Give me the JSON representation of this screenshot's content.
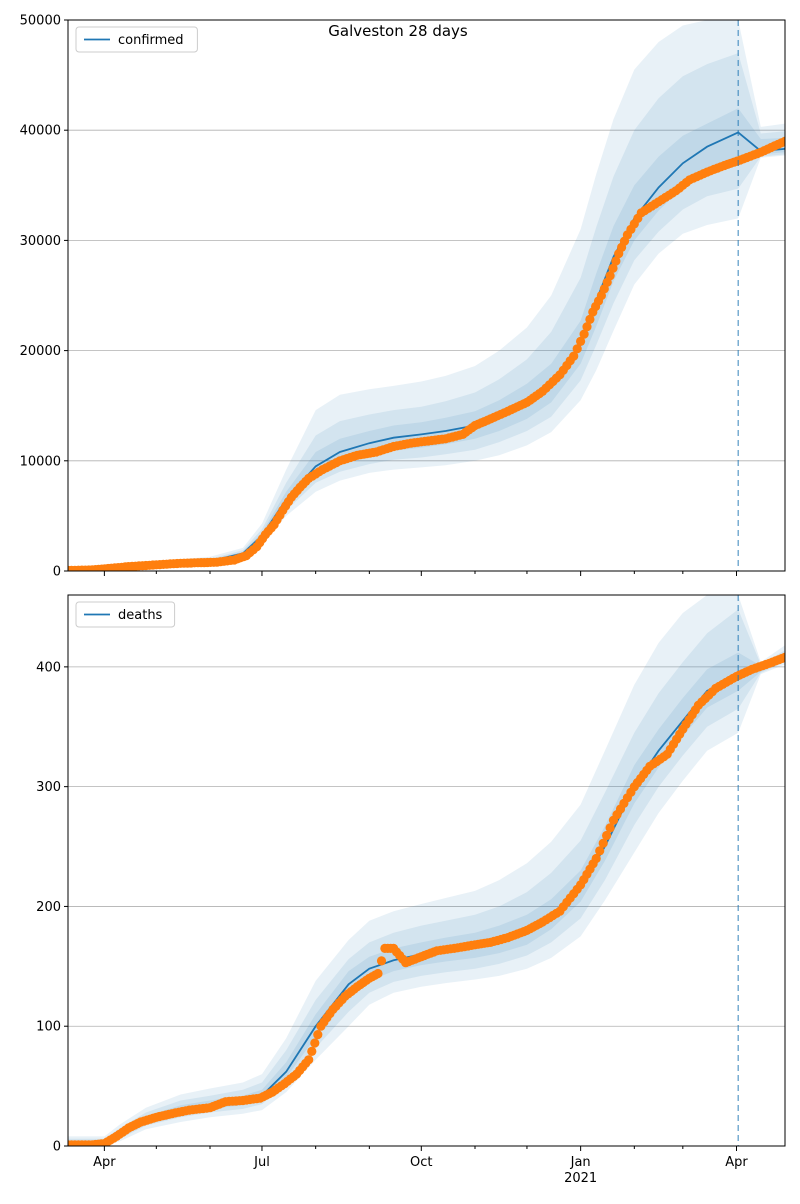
{
  "figure": {
    "title": "Galveston 28 days"
  },
  "colors": {
    "model": "#1f77b4",
    "observed": "#ff7f0e",
    "grid": "#b0b0b0",
    "band": "#1f77b4"
  },
  "chart_data": [
    {
      "type": "line",
      "panel": "top",
      "legend": [
        "confirmed"
      ],
      "legend_position": "top-left",
      "grid": "horizontal",
      "ylim": [
        0,
        50000
      ],
      "yticks": [
        "0",
        "10000",
        "20000",
        "30000",
        "40000",
        "50000"
      ],
      "yticks_values": [
        0,
        10000,
        20000,
        30000,
        40000,
        50000
      ],
      "xlim": [
        "2020-03-11",
        "2021-04-29"
      ],
      "forecast_date": "2021-04-02",
      "series": [
        {
          "name": "confirmed",
          "kind": "model",
          "x": [
            "2020-03-11",
            "2020-04-01",
            "2020-05-01",
            "2020-06-01",
            "2020-06-20",
            "2020-07-01",
            "2020-07-15",
            "2020-08-01",
            "2020-08-15",
            "2020-09-01",
            "2020-09-15",
            "2020-10-01",
            "2020-10-15",
            "2020-11-01",
            "2020-11-15",
            "2020-12-01",
            "2020-12-15",
            "2021-01-01",
            "2021-01-10",
            "2021-01-20",
            "2021-02-01",
            "2021-02-15",
            "2021-03-01",
            "2021-03-15",
            "2021-04-02",
            "2021-04-15",
            "2021-04-29"
          ],
          "y": [
            0,
            200,
            600,
            900,
            1600,
            3200,
            6500,
            9500,
            10800,
            11600,
            12100,
            12400,
            12700,
            13200,
            14000,
            15200,
            16800,
            20500,
            24500,
            28500,
            32000,
            34800,
            37000,
            38500,
            39800,
            38100,
            38300
          ],
          "bands": [
            {
              "lower": [
                0,
                100,
                400,
                600,
                1200,
                2400,
                5000,
                7200,
                8200,
                8900,
                9200,
                9400,
                9600,
                10000,
                10500,
                11400,
                12600,
                15500,
                18200,
                21800,
                26000,
                28800,
                30600,
                31400,
                32000,
                37500,
                37700
              ],
              "upper": [
                0,
                300,
                900,
                1300,
                2100,
                4300,
                9200,
                14600,
                16000,
                16500,
                16800,
                17200,
                17700,
                18600,
                20000,
                22100,
                25000,
                31000,
                36000,
                41000,
                45500,
                48000,
                49500,
                50000,
                50000,
                40300,
                40600
              ]
            },
            {
              "lower": [
                0,
                130,
                470,
                700,
                1350,
                2700,
                5500,
                8000,
                9000,
                9700,
                10100,
                10300,
                10600,
                11000,
                11700,
                12700,
                14000,
                17300,
                20500,
                24300,
                28200,
                30800,
                32800,
                34000,
                34700,
                37600,
                37800
              ],
              "upper": [
                0,
                260,
                770,
                1100,
                1900,
                3800,
                8000,
                12300,
                13600,
                14200,
                14600,
                14900,
                15400,
                16200,
                17400,
                19200,
                21700,
                26600,
                31200,
                35800,
                40000,
                42900,
                44900,
                46000,
                47000,
                39700,
                39900
              ]
            },
            {
              "lower": [
                0,
                160,
                530,
                800,
                1450,
                2900,
                5900,
                8700,
                9800,
                10500,
                10900,
                11200,
                11500,
                12000,
                12700,
                13800,
                15300,
                18800,
                22200,
                26300,
                30000,
                32700,
                34800,
                36200,
                37200,
                37800,
                38000
              ],
              "upper": [
                0,
                230,
                670,
                1000,
                1750,
                3500,
                7200,
                10800,
                12000,
                12700,
                13200,
                13500,
                13900,
                14500,
                15500,
                17000,
                18800,
                22700,
                27000,
                31300,
                35000,
                37600,
                39500,
                40600,
                42000,
                39200,
                39300
              ]
            }
          ]
        },
        {
          "name": "observed",
          "kind": "points",
          "x": [
            "2020-03-11",
            "2020-03-25",
            "2020-04-05",
            "2020-04-15",
            "2020-04-25",
            "2020-05-05",
            "2020-05-15",
            "2020-05-25",
            "2020-06-05",
            "2020-06-15",
            "2020-06-22",
            "2020-06-28",
            "2020-07-03",
            "2020-07-08",
            "2020-07-13",
            "2020-07-18",
            "2020-07-23",
            "2020-07-28",
            "2020-08-05",
            "2020-08-15",
            "2020-08-25",
            "2020-09-05",
            "2020-09-15",
            "2020-09-25",
            "2020-10-05",
            "2020-10-15",
            "2020-10-25",
            "2020-11-01",
            "2020-11-10",
            "2020-11-20",
            "2020-12-01",
            "2020-12-10",
            "2020-12-20",
            "2020-12-28",
            "2021-01-03",
            "2021-01-08",
            "2021-01-13",
            "2021-01-18",
            "2021-01-23",
            "2021-01-28",
            "2021-02-05",
            "2021-02-15",
            "2021-02-25",
            "2021-03-05",
            "2021-03-15",
            "2021-03-25",
            "2021-04-05",
            "2021-04-15",
            "2021-04-29"
          ],
          "y": [
            50,
            100,
            250,
            400,
            500,
            600,
            700,
            750,
            800,
            1000,
            1400,
            2200,
            3300,
            4200,
            5500,
            6700,
            7600,
            8400,
            9200,
            10000,
            10500,
            10800,
            11300,
            11600,
            11800,
            12000,
            12400,
            13200,
            13800,
            14500,
            15300,
            16300,
            17800,
            19500,
            21500,
            23500,
            25000,
            26800,
            28800,
            30500,
            32500,
            33500,
            34500,
            35500,
            36200,
            36800,
            37400,
            38000,
            39000
          ]
        }
      ]
    },
    {
      "type": "line",
      "panel": "bottom",
      "legend": [
        "deaths"
      ],
      "legend_position": "top-left",
      "grid": "horizontal",
      "ylim": [
        0,
        460
      ],
      "yticks": [
        "0",
        "100",
        "200",
        "300",
        "400"
      ],
      "yticks_values": [
        0,
        100,
        200,
        300,
        400
      ],
      "xlim": [
        "2020-03-11",
        "2021-04-29"
      ],
      "xticks": [
        "Apr",
        "Jul",
        "Oct",
        "Jan",
        "Apr"
      ],
      "xticks_dates": [
        "2020-04-01",
        "2020-07-01",
        "2020-10-01",
        "2021-01-01",
        "2021-04-01"
      ],
      "xtick_year": "2021",
      "forecast_date": "2021-04-02",
      "series": [
        {
          "name": "deaths",
          "kind": "model",
          "x": [
            "2020-03-11",
            "2020-04-01",
            "2020-04-10",
            "2020-04-25",
            "2020-05-15",
            "2020-06-01",
            "2020-06-20",
            "2020-07-01",
            "2020-07-15",
            "2020-08-01",
            "2020-08-20",
            "2020-09-01",
            "2020-09-15",
            "2020-10-01",
            "2020-10-15",
            "2020-11-01",
            "2020-11-15",
            "2020-12-01",
            "2020-12-15",
            "2021-01-01",
            "2021-01-15",
            "2021-02-01",
            "2021-02-15",
            "2021-03-01",
            "2021-03-15",
            "2021-04-02",
            "2021-04-15",
            "2021-04-29"
          ],
          "y": [
            0,
            0,
            10,
            22,
            30,
            34,
            38,
            42,
            62,
            100,
            135,
            148,
            155,
            160,
            163,
            166,
            170,
            177,
            190,
            215,
            250,
            300,
            330,
            355,
            380,
            392,
            398,
            408
          ],
          "bands": [
            {
              "lower": [
                0,
                0,
                4,
                14,
                20,
                24,
                27,
                30,
                45,
                72,
                100,
                118,
                128,
                133,
                136,
                139,
                142,
                148,
                157,
                175,
                205,
                245,
                278,
                305,
                330,
                345,
                394,
                402
              ],
              "upper": [
                8,
                8,
                18,
                32,
                43,
                48,
                53,
                60,
                90,
                138,
                172,
                188,
                196,
                202,
                207,
                213,
                222,
                236,
                254,
                285,
                330,
                385,
                420,
                445,
                460,
                460,
                404,
                418
              ]
            },
            {
              "lower": [
                0,
                0,
                6,
                17,
                24,
                28,
                31,
                35,
                52,
                82,
                112,
                128,
                137,
                142,
                145,
                148,
                152,
                159,
                170,
                190,
                222,
                268,
                300,
                326,
                350,
                365,
                395,
                404
              ],
              "upper": [
                6,
                6,
                15,
                28,
                38,
                42,
                47,
                53,
                80,
                122,
                156,
                170,
                178,
                184,
                188,
                193,
                200,
                212,
                228,
                255,
                295,
                345,
                378,
                404,
                428,
                448,
                402,
                414
              ]
            },
            {
              "lower": [
                0,
                0,
                8,
                19,
                27,
                31,
                34,
                38,
                57,
                91,
                124,
                138,
                146,
                151,
                154,
                157,
                161,
                168,
                181,
                204,
                238,
                286,
                316,
                342,
                366,
                380,
                396,
                405
              ],
              "upper": [
                3,
                3,
                12,
                25,
                34,
                38,
                42,
                47,
                70,
                110,
                146,
                158,
                165,
                170,
                174,
                178,
                184,
                193,
                206,
                230,
                267,
                318,
                348,
                374,
                398,
                412,
                401,
                412
              ]
            }
          ]
        },
        {
          "name": "observed",
          "kind": "points",
          "x": [
            "2020-03-11",
            "2020-03-25",
            "2020-04-01",
            "2020-04-08",
            "2020-04-15",
            "2020-04-22",
            "2020-05-01",
            "2020-05-10",
            "2020-05-20",
            "2020-06-01",
            "2020-06-10",
            "2020-06-20",
            "2020-06-30",
            "2020-07-07",
            "2020-07-14",
            "2020-07-21",
            "2020-07-28",
            "2020-08-04",
            "2020-08-11",
            "2020-08-18",
            "2020-08-25",
            "2020-09-01",
            "2020-09-06",
            "2020-09-10",
            "2020-09-15",
            "2020-09-22",
            "2020-10-01",
            "2020-10-10",
            "2020-10-20",
            "2020-11-01",
            "2020-11-10",
            "2020-11-20",
            "2020-12-01",
            "2020-12-10",
            "2020-12-20",
            "2021-01-01",
            "2021-01-10",
            "2021-01-20",
            "2021-02-01",
            "2021-02-10",
            "2021-02-20",
            "2021-03-01",
            "2021-03-10",
            "2021-03-20",
            "2021-04-01",
            "2021-04-10",
            "2021-04-20",
            "2021-04-29"
          ],
          "y": [
            1,
            1,
            2,
            8,
            15,
            20,
            24,
            27,
            30,
            32,
            37,
            38,
            40,
            45,
            52,
            60,
            72,
            100,
            114,
            125,
            133,
            140,
            144,
            165,
            165,
            153,
            158,
            163,
            165,
            168,
            170,
            174,
            180,
            187,
            196,
            218,
            240,
            272,
            300,
            317,
            327,
            348,
            368,
            382,
            392,
            398,
            403,
            408
          ]
        }
      ]
    }
  ]
}
